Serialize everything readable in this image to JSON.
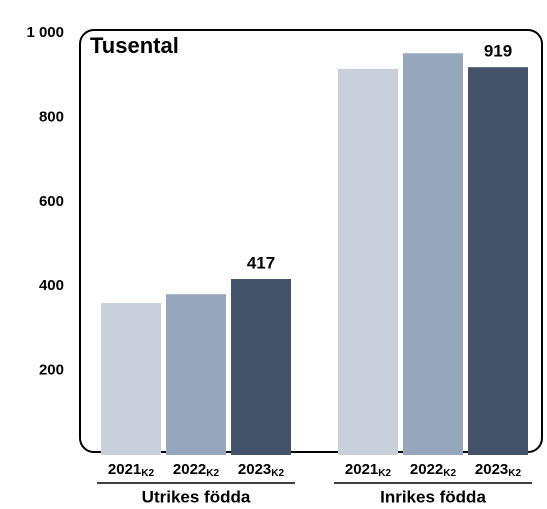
{
  "chart_data": {
    "type": "bar",
    "title": "Tusental",
    "categories": [
      "Utrikes födda",
      "Inrikes födda"
    ],
    "series": [
      {
        "name": "2021",
        "suffix": "K2",
        "color": "#c9d0dc",
        "values": [
          360,
          915
        ]
      },
      {
        "name": "2022",
        "suffix": "K2",
        "color": "#97a6bc",
        "values": [
          381,
          952
        ]
      },
      {
        "name": "2023",
        "suffix": "K2",
        "color": "#44526a",
        "values": [
          417,
          919
        ],
        "data_labels": true
      }
    ],
    "ylim": [
      0,
      1000
    ],
    "yticks": [
      200,
      400,
      600,
      800,
      {
        "value": 1000,
        "label": "1 000"
      }
    ],
    "grid": false
  }
}
